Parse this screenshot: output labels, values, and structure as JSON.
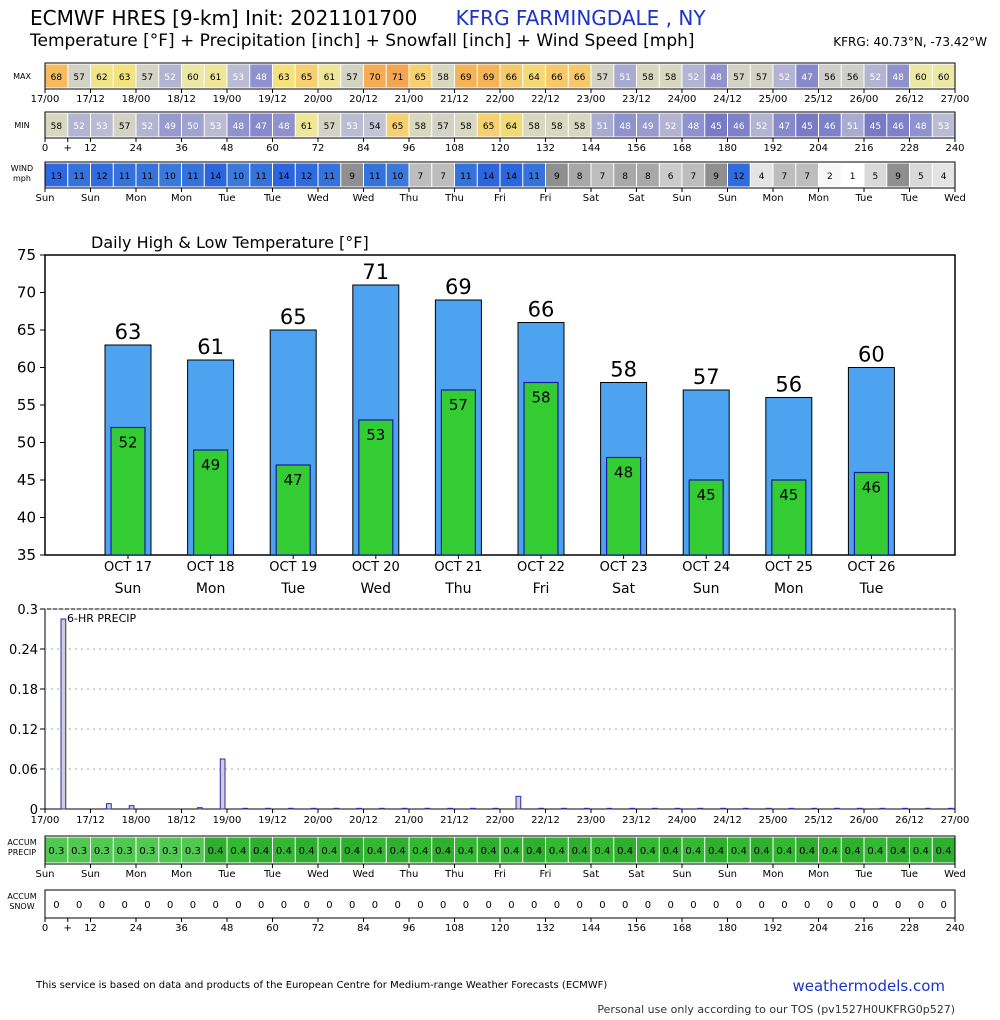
{
  "header": {
    "title_prefix": "ECMWF HRES [9-km] Init: 2021101700",
    "station": "KFRG FARMINGDALE     , NY",
    "subtitle": "Temperature [°F] + Precipitation [inch] + Snowfall [inch] + Wind Speed [mph]",
    "coords": "KFRG: 40.73°N, -73.42°W"
  },
  "strips": {
    "max_label": "MAX",
    "min_label": "MIN",
    "wind_label_1": "WIND",
    "wind_label_2": "mph",
    "accum_precip_label_1": "ACCUM",
    "accum_precip_label_2": "PRECIP",
    "accum_snow_label_1": "ACCUM",
    "accum_snow_label_2": "SNOW",
    "max_values": [
      68,
      57,
      62,
      63,
      57,
      52,
      60,
      61,
      53,
      48,
      63,
      65,
      61,
      57,
      70,
      71,
      65,
      58,
      69,
      69,
      66,
      64,
      66,
      66,
      57,
      51,
      58,
      58,
      52,
      48,
      57,
      57,
      52,
      47,
      56,
      56,
      52,
      48,
      60,
      60
    ],
    "min_values": [
      58,
      52,
      53,
      57,
      52,
      49,
      50,
      53,
      48,
      47,
      48,
      61,
      57,
      53,
      54,
      65,
      58,
      57,
      58,
      65,
      64,
      58,
      58,
      58,
      51,
      48,
      49,
      52,
      48,
      45,
      46,
      52,
      47,
      45,
      46,
      51,
      45,
      46,
      48,
      53
    ],
    "wind_values": [
      13,
      11,
      12,
      11,
      11,
      10,
      11,
      14,
      10,
      11,
      14,
      12,
      11,
      9,
      11,
      10,
      7,
      7,
      11,
      14,
      14,
      11,
      9,
      8,
      7,
      8,
      8,
      6,
      7,
      9,
      12,
      4,
      7,
      7,
      2,
      1,
      5,
      9,
      5,
      4
    ],
    "accum_precip_values": [
      "0.3",
      "0.3",
      "0.3",
      "0.3",
      "0.3",
      "0.3",
      "0.3",
      "0.4",
      "0.4",
      "0.4",
      "0.4",
      "0.4",
      "0.4",
      "0.4",
      "0.4",
      "0.4",
      "0.4",
      "0.4",
      "0.4",
      "0.4",
      "0.4",
      "0.4",
      "0.4",
      "0.4",
      "0.4",
      "0.4",
      "0.4",
      "0.4",
      "0.4",
      "0.4",
      "0.4",
      "0.4",
      "0.4",
      "0.4",
      "0.4",
      "0.4",
      "0.4",
      "0.4",
      "0.4",
      "0.4"
    ],
    "accum_snow_values": [
      "0",
      "0",
      "0",
      "0",
      "0",
      "0",
      "0",
      "0",
      "0",
      "0",
      "0",
      "0",
      "0",
      "0",
      "0",
      "0",
      "0",
      "0",
      "0",
      "0",
      "0",
      "0",
      "0",
      "0",
      "0",
      "0",
      "0",
      "0",
      "0",
      "0",
      "0",
      "0",
      "0",
      "0",
      "0",
      "0",
      "0",
      "0",
      "0",
      "0"
    ],
    "date_ticks": [
      "17/00",
      "17/12",
      "18/00",
      "18/12",
      "19/00",
      "19/12",
      "20/00",
      "20/12",
      "21/00",
      "21/12",
      "22/00",
      "22/12",
      "23/00",
      "23/12",
      "24/00",
      "24/12",
      "25/00",
      "25/12",
      "26/00",
      "26/12",
      "27/00"
    ],
    "hour_ticks": [
      "0",
      "+",
      "12",
      "24",
      "36",
      "48",
      "60",
      "72",
      "84",
      "96",
      "108",
      "120",
      "132",
      "144",
      "156",
      "168",
      "180",
      "192",
      "204",
      "216",
      "228",
      "240"
    ],
    "day_ticks": [
      "Sun",
      "Sun",
      "Mon",
      "Mon",
      "Tue",
      "Tue",
      "Wed",
      "Wed",
      "Thu",
      "Thu",
      "Fri",
      "Fri",
      "Sat",
      "Sat",
      "Sun",
      "Sun",
      "Mon",
      "Mon",
      "Tue",
      "Tue",
      "Wed"
    ]
  },
  "chart_data": [
    {
      "type": "bar",
      "title": "Daily High & Low Temperature [°F]",
      "categories": [
        "OCT 17",
        "OCT 18",
        "OCT 19",
        "OCT 20",
        "OCT 21",
        "OCT 22",
        "OCT 23",
        "OCT 24",
        "OCT 25",
        "OCT 26"
      ],
      "day_names": [
        "Sun",
        "Mon",
        "Tue",
        "Wed",
        "Thu",
        "Fri",
        "Sat",
        "Sun",
        "Mon",
        "Tue"
      ],
      "series": [
        {
          "values": [
            63,
            61,
            65,
            71,
            69,
            66,
            58,
            57,
            56,
            60
          ],
          "color": "#4da3f0"
        },
        {
          "values": [
            52,
            49,
            47,
            53,
            57,
            58,
            48,
            45,
            45,
            46
          ],
          "color": "#33cc33"
        }
      ],
      "ylim": [
        35,
        75
      ],
      "yticks": [
        35,
        40,
        45,
        50,
        55,
        60,
        65,
        70,
        75
      ],
      "grid": false
    },
    {
      "type": "bar",
      "title": "6-HR PRECIP",
      "x_hours": [
        0,
        6,
        12,
        18,
        24,
        30,
        36,
        42,
        48,
        54,
        60,
        66,
        72,
        78,
        84,
        90,
        96,
        102,
        108,
        114,
        120,
        126,
        132,
        138,
        144,
        150,
        156,
        162,
        168,
        174,
        180,
        186,
        192,
        198,
        204,
        210,
        216,
        222,
        228,
        234
      ],
      "values": [
        0.285,
        0,
        0.008,
        0.005,
        0,
        0,
        0.002,
        0.075,
        0.001,
        0.001,
        0.001,
        0.001,
        0.001,
        0.001,
        0.001,
        0.001,
        0.001,
        0.001,
        0.001,
        0.001,
        0.019,
        0.001,
        0.001,
        0.001,
        0.001,
        0.001,
        0.001,
        0.001,
        0.001,
        0.001,
        0.001,
        0.001,
        0.001,
        0.001,
        0.001,
        0.001,
        0.001,
        0.001,
        0.001,
        0.001
      ],
      "ylim": [
        0,
        0.3
      ],
      "ytick_labels": [
        "0",
        "0.06",
        "0.12",
        "0.18",
        "0.24",
        "0.3"
      ],
      "grid": true
    }
  ],
  "footer": {
    "note": "This service is based on data and products of the European Centre for Medium-range Weather Forecasts (ECMWF)",
    "brand": "weathermodels.com",
    "tos": "Personal use only according to our TOS (pv1527H0UKFRG0p527)"
  }
}
